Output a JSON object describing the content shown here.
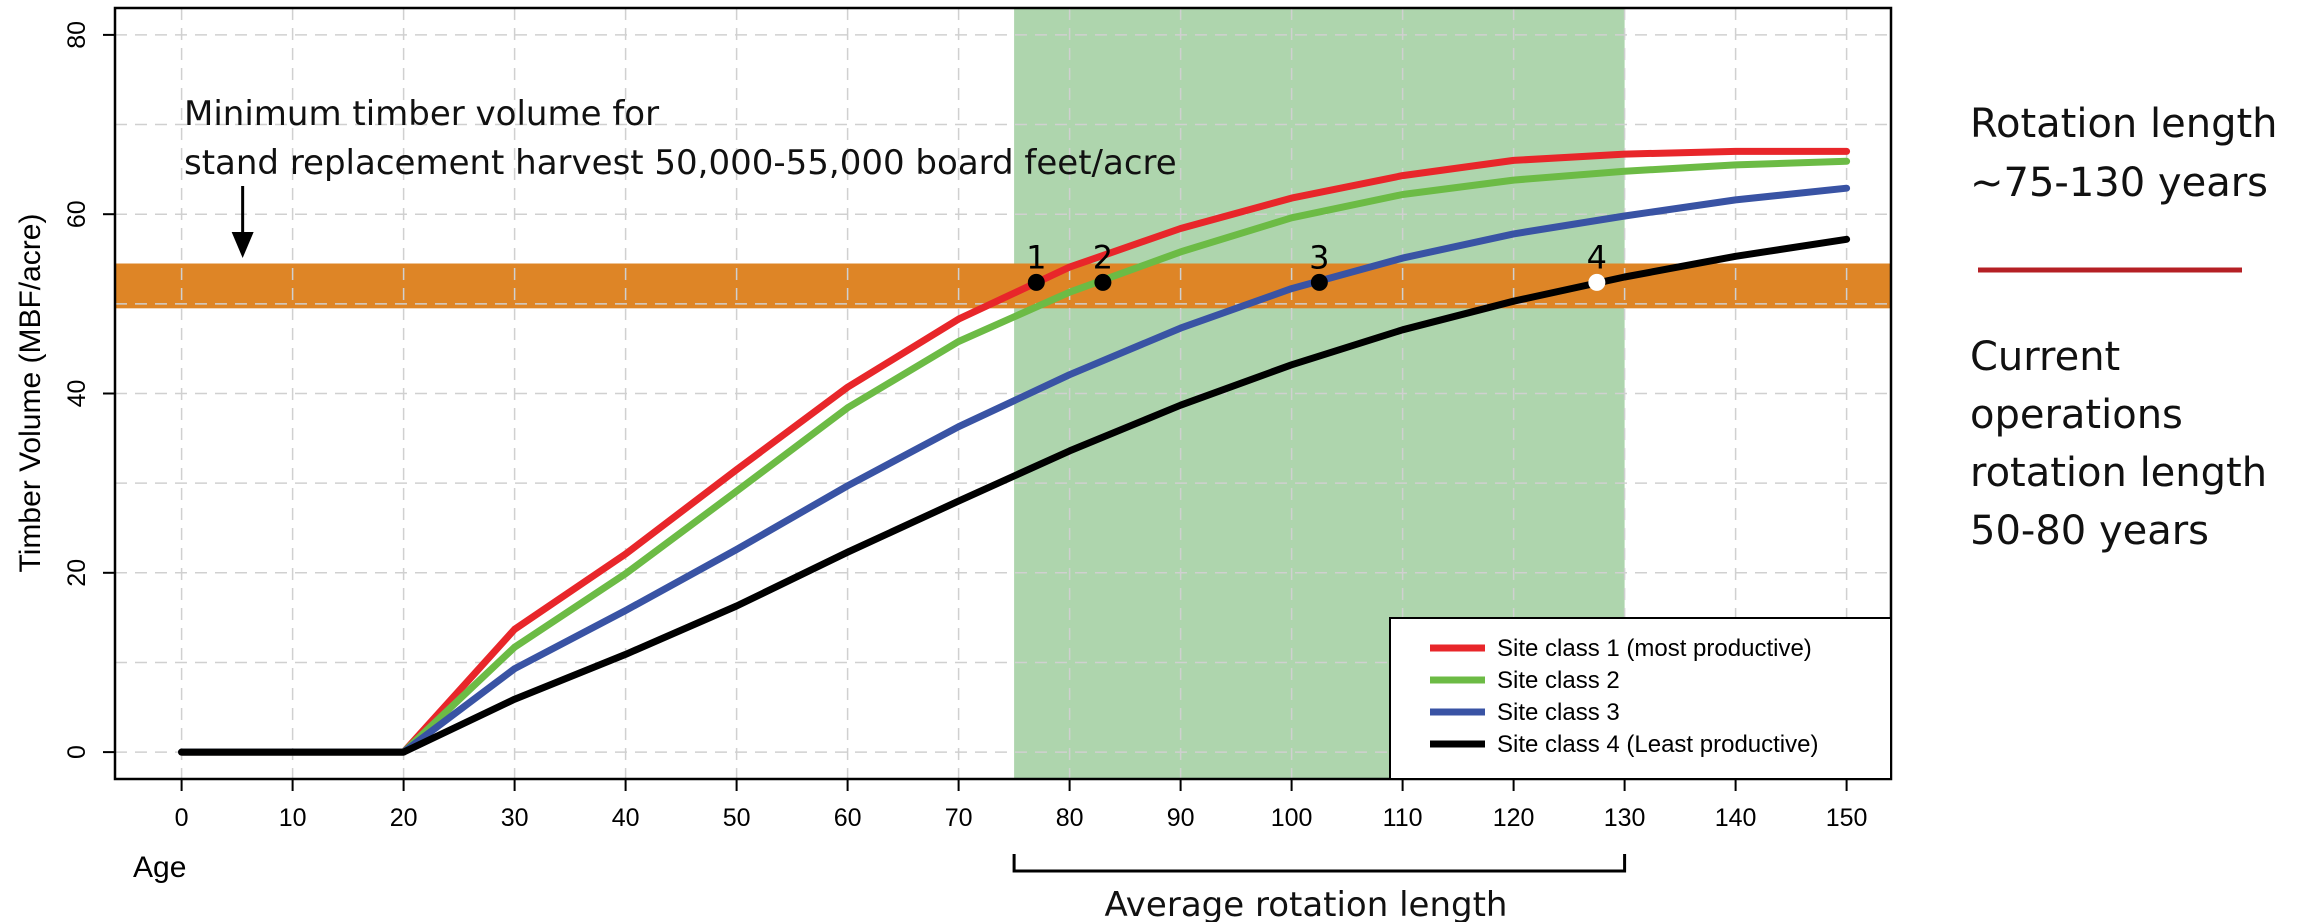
{
  "chart_data": {
    "type": "line",
    "xlabel": "Age",
    "ylabel": "Timber Volume (MBF/acre)",
    "xlim": [
      -6,
      154
    ],
    "ylim": [
      -3,
      83
    ],
    "x_ticks": [
      0,
      10,
      20,
      30,
      40,
      50,
      60,
      70,
      80,
      90,
      100,
      110,
      120,
      130,
      140,
      150
    ],
    "y_ticks": [
      0,
      20,
      40,
      60,
      80
    ],
    "grid": true,
    "x": [
      0,
      20,
      30,
      40,
      50,
      60,
      70,
      80,
      90,
      100,
      110,
      120,
      130,
      140,
      150
    ],
    "series": [
      {
        "name": "Site class 1 (most productive)",
        "color": "#e8262a",
        "values": [
          0,
          0,
          13.7,
          22.1,
          31.5,
          40.7,
          48.3,
          54.1,
          58.4,
          61.8,
          64.3,
          66.0,
          66.7,
          67.0,
          67.0
        ]
      },
      {
        "name": "Site class 2",
        "color": "#6cbb45",
        "values": [
          0,
          0,
          11.7,
          19.9,
          29.1,
          38.4,
          45.8,
          51.3,
          55.8,
          59.6,
          62.2,
          63.8,
          64.8,
          65.5,
          65.9
        ]
      },
      {
        "name": "Site class 3",
        "color": "#3953a4",
        "values": [
          0,
          0,
          9.3,
          15.8,
          22.6,
          29.7,
          36.3,
          42.1,
          47.3,
          51.7,
          55.1,
          57.8,
          59.8,
          61.6,
          62.9
        ]
      },
      {
        "name": "Site class 4 (Least productive)",
        "color": "#000000",
        "values": [
          0,
          0,
          5.9,
          10.9,
          16.3,
          22.3,
          28.0,
          33.6,
          38.7,
          43.2,
          47.1,
          50.3,
          53.0,
          55.3,
          57.2
        ]
      }
    ],
    "bands": {
      "rotation": {
        "x_from": 75,
        "x_to": 130,
        "color": "#aed5ad"
      },
      "minimum_volume": {
        "y_from": 49.5,
        "y_to": 54.5,
        "color": "#de8526"
      }
    },
    "points": [
      {
        "label": "1",
        "x": 77,
        "y": 52.4,
        "fill": "#000000"
      },
      {
        "label": "2",
        "x": 83,
        "y": 52.4,
        "fill": "#000000"
      },
      {
        "label": "3",
        "x": 102.5,
        "y": 52.4,
        "fill": "#000000"
      },
      {
        "label": "4",
        "x": 127.5,
        "y": 52.4,
        "fill": "#ffffff"
      }
    ],
    "annotations": {
      "min_volume_line1": "Minimum timber volume for",
      "min_volume_line2": "stand replacement harvest 50,000-55,000 board feet/acre",
      "rotation_bracket": "Average rotation length",
      "bracket_range": [
        75,
        130
      ],
      "arrow_x": 5.5
    },
    "legend_position": "bottom-right"
  },
  "side_panel": {
    "rotation_line1": "Rotation length",
    "rotation_line2": "~75-130 years",
    "divider_color": "#b52025",
    "current_lines": [
      "Current",
      "operations",
      "rotation length",
      "50-80 years"
    ]
  }
}
